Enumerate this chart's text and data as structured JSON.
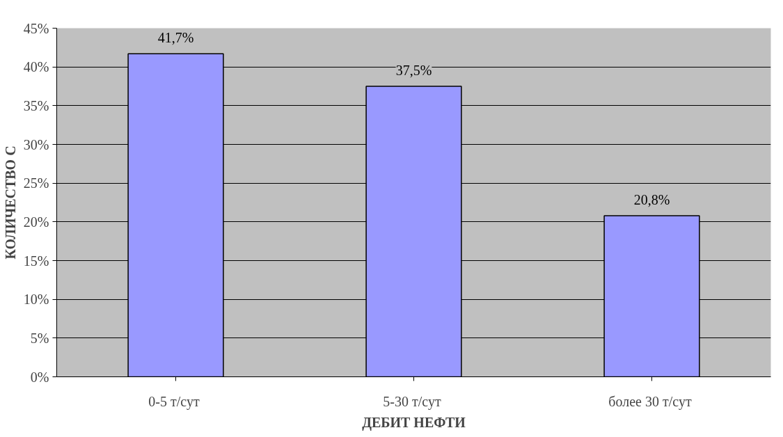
{
  "chart_data": {
    "type": "bar",
    "xlabel": "ДЕБИТ НЕФТИ",
    "ylabel": "КОЛИЧЕСТВО С",
    "categories": [
      "0-5  т/сут",
      "5-30  т/сут",
      "более 30  т/сут"
    ],
    "values": [
      41.7,
      37.5,
      20.8
    ],
    "color": "#9999ff",
    "value_labels": [
      "41,7%",
      "37,5%",
      "20,8%"
    ],
    "ylim": [
      0,
      45
    ],
    "yticks": [
      {
        "value": 0,
        "label": "0%"
      },
      {
        "value": 5,
        "label": "5%"
      },
      {
        "value": 10,
        "label": "10%"
      },
      {
        "value": 15,
        "label": "15%"
      },
      {
        "value": 20,
        "label": "20%"
      },
      {
        "value": 25,
        "label": "25%"
      },
      {
        "value": 30,
        "label": "30%"
      },
      {
        "value": 35,
        "label": "35%"
      },
      {
        "value": 40,
        "label": "40%"
      },
      {
        "value": 45,
        "label": "45%"
      }
    ],
    "grid": "y"
  }
}
